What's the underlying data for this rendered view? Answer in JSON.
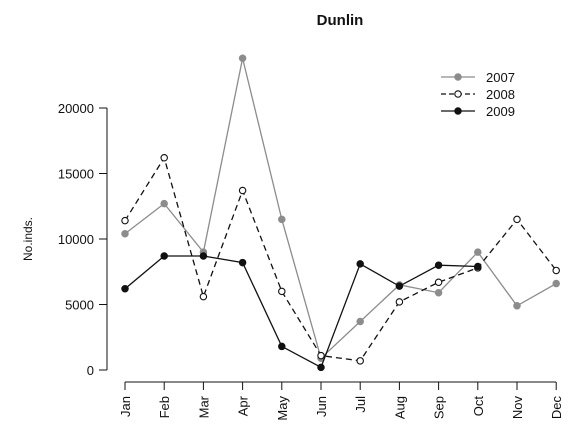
{
  "chart_data": {
    "type": "line",
    "title": "Dunlin",
    "xlabel": "",
    "ylabel": "No.inds.",
    "categories": [
      "Jan",
      "Feb",
      "Mar",
      "Apr",
      "May",
      "Jun",
      "Jul",
      "Aug",
      "Sep",
      "Oct",
      "Nov",
      "Dec"
    ],
    "y_ticks": [
      0,
      5000,
      10000,
      15000,
      20000
    ],
    "y_tick_labels": [
      "0",
      "5000",
      "10000",
      "15000",
      "20000"
    ],
    "ylim": [
      0,
      25000
    ],
    "grid": false,
    "legend_position": "top-right",
    "series": [
      {
        "name": "2007",
        "color": "#8c8c8c",
        "line_style": "solid",
        "marker": "filled-circle",
        "values": [
          10400,
          12700,
          9000,
          23800,
          11500,
          900,
          3700,
          6500,
          5900,
          9000,
          4900,
          6600
        ]
      },
      {
        "name": "2008",
        "color": "#111111",
        "line_style": "dashed",
        "marker": "open-circle",
        "values": [
          11400,
          16200,
          5600,
          13700,
          6000,
          1100,
          700,
          5200,
          6700,
          7800,
          11500,
          7600
        ]
      },
      {
        "name": "2009",
        "color": "#111111",
        "line_style": "solid",
        "marker": "filled-circle",
        "values": [
          6200,
          8700,
          8700,
          8200,
          1800,
          200,
          8100,
          6400,
          8000,
          7900,
          null,
          null
        ]
      }
    ]
  }
}
